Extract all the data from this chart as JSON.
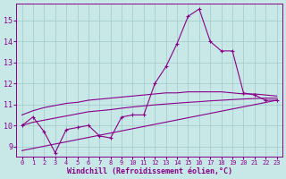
{
  "xlabel": "Windchill (Refroidissement éolien,°C)",
  "xlim": [
    -0.5,
    23.5
  ],
  "ylim": [
    8.5,
    15.8
  ],
  "yticks": [
    9,
    10,
    11,
    12,
    13,
    14,
    15
  ],
  "xticks": [
    0,
    1,
    2,
    3,
    4,
    5,
    6,
    7,
    8,
    9,
    10,
    11,
    12,
    13,
    14,
    15,
    16,
    17,
    18,
    19,
    20,
    21,
    22,
    23
  ],
  "background_color": "#c8e8e8",
  "grid_color": "#a0c8c8",
  "line_color": "#880088",
  "line1": {
    "x": [
      0,
      1,
      2,
      3,
      4,
      5,
      6,
      7,
      8,
      9,
      10,
      11,
      12,
      13,
      14,
      15,
      16,
      17,
      18,
      19,
      20,
      21,
      22,
      23
    ],
    "y": [
      10.0,
      10.4,
      9.7,
      8.7,
      9.8,
      9.9,
      10.0,
      9.5,
      9.4,
      10.4,
      10.5,
      10.5,
      12.0,
      12.8,
      13.9,
      15.2,
      15.55,
      14.0,
      13.55,
      13.55,
      11.55,
      11.45,
      11.2,
      11.2
    ]
  },
  "line2": {
    "x": [
      0,
      1,
      2,
      3,
      4,
      5,
      6,
      7,
      8,
      9,
      10,
      11,
      12,
      13,
      14,
      15,
      16,
      17,
      18,
      19,
      20,
      21,
      22,
      23
    ],
    "y": [
      10.5,
      10.7,
      10.85,
      10.95,
      11.05,
      11.1,
      11.2,
      11.25,
      11.3,
      11.35,
      11.4,
      11.45,
      11.5,
      11.55,
      11.55,
      11.6,
      11.6,
      11.6,
      11.6,
      11.55,
      11.5,
      11.5,
      11.45,
      11.4
    ]
  },
  "line3": {
    "x": [
      0,
      1,
      2,
      3,
      4,
      5,
      6,
      7,
      8,
      9,
      10,
      11,
      12,
      13,
      14,
      15,
      16,
      17,
      18,
      19,
      20,
      21,
      22,
      23
    ],
    "y": [
      10.0,
      10.15,
      10.25,
      10.35,
      10.45,
      10.55,
      10.65,
      10.7,
      10.75,
      10.82,
      10.88,
      10.93,
      10.98,
      11.02,
      11.06,
      11.1,
      11.13,
      11.17,
      11.2,
      11.23,
      11.26,
      11.28,
      11.3,
      11.3
    ]
  },
  "line4": {
    "x": [
      0,
      23
    ],
    "y": [
      8.8,
      11.2
    ]
  }
}
